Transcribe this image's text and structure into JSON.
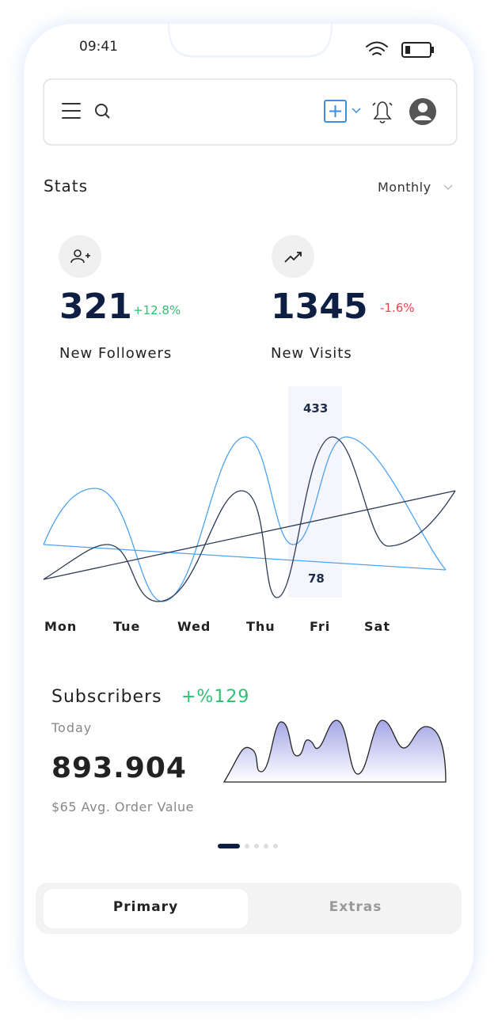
{
  "status_bar": {
    "time": "09:41"
  },
  "stats": {
    "title": "Stats",
    "period": "Monthly",
    "cards": [
      {
        "value": "321",
        "change": "+12.8%",
        "label": "New Followers"
      },
      {
        "value": "1345",
        "change": "-1.6%",
        "label": "New Visits"
      }
    ]
  },
  "chart": {
    "days": [
      "Mon",
      "Tue",
      "Wed",
      "Thu",
      "Fri",
      "Sat"
    ],
    "highlight_high": "433",
    "highlight_low": "78"
  },
  "subscribers": {
    "title": "Subscribers",
    "change": "+%129",
    "period": "Today",
    "value": "893.904",
    "note": "$65 Avg. Order Value"
  },
  "tabs": [
    "Primary",
    "Extras"
  ]
}
